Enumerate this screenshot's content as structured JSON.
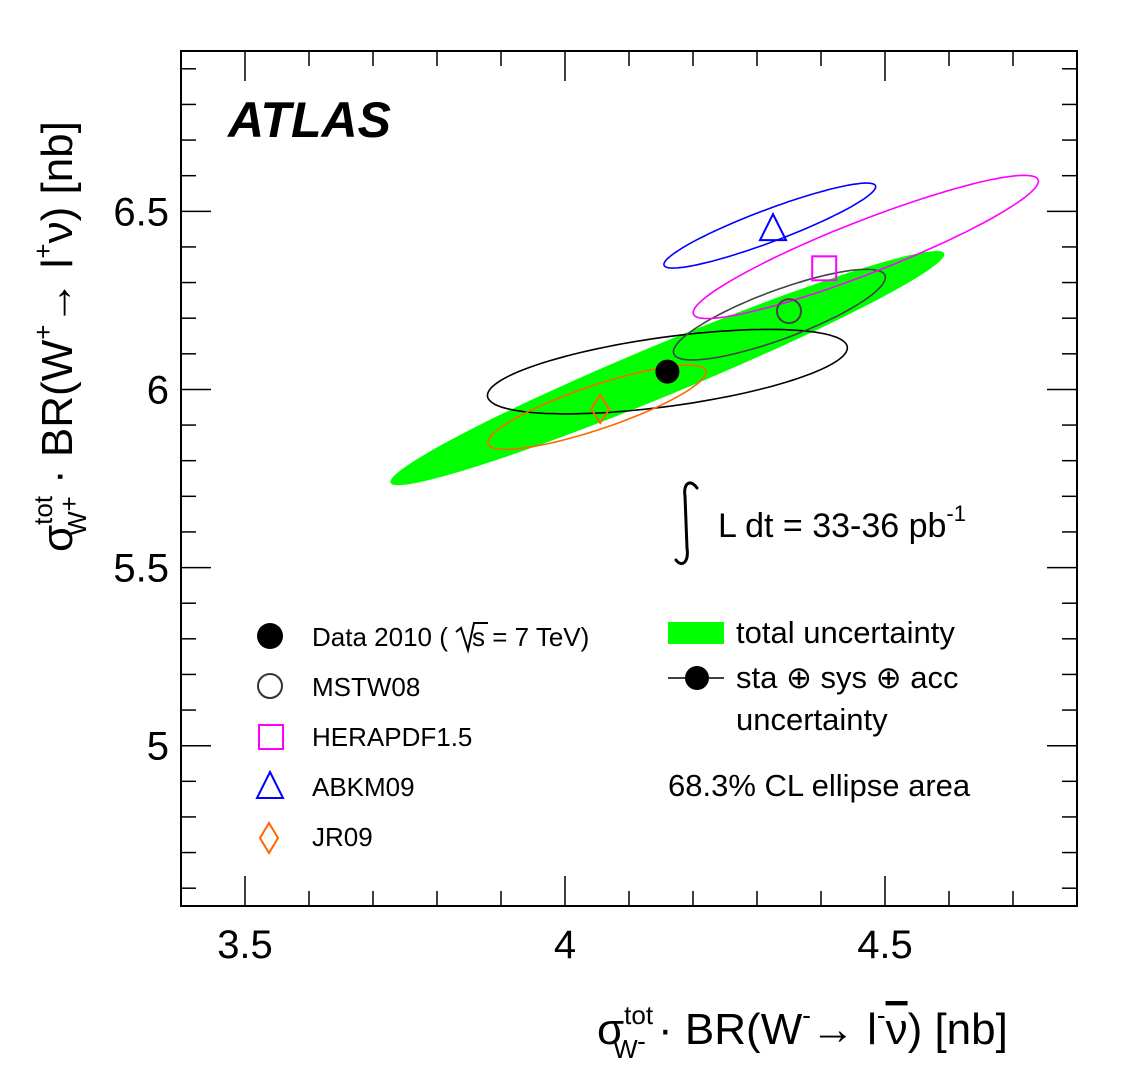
{
  "chart_data": {
    "type": "scatter",
    "experiment_label": "ATLAS",
    "luminosity_label": "L dt = 33-36 pb",
    "luminosity_exponent": "-1",
    "xlabel": {
      "sigma": "σ",
      "sup": "tot",
      "sub": "W",
      "sub_charge": "-",
      "rest": " · BR(W",
      "rest_charge": "-",
      "arrow": "→ l",
      "lepton_charge": "-",
      "neutrino": "ν",
      "unit": ") [nb]"
    },
    "ylabel": {
      "sigma": "σ",
      "sup": "tot",
      "sub": "W",
      "sub_charge": "+",
      "rest": " · BR(W",
      "rest_charge": "+",
      "arrow": "→ l",
      "lepton_charge": "+",
      "neutrino": "ν",
      "unit": ") [nb]"
    },
    "xlim": [
      3.4,
      4.8
    ],
    "ylim": [
      4.55,
      6.95
    ],
    "x_ticks": [
      {
        "value": 3.5,
        "label": "3.5"
      },
      {
        "value": 4.0,
        "label": "4"
      },
      {
        "value": 4.5,
        "label": "4.5"
      }
    ],
    "y_ticks": [
      {
        "value": 5.0,
        "label": "5"
      },
      {
        "value": 5.5,
        "label": "5.5"
      },
      {
        "value": 6.0,
        "label": "6"
      },
      {
        "value": 6.5,
        "label": "6.5"
      }
    ],
    "x_minor_step": 0.1,
    "y_minor_step": 0.1,
    "total_uncertainty_ellipse": {
      "cx": 4.16,
      "cy": 6.06,
      "major": 0.54,
      "minor": 0.062,
      "angle_deg": 37,
      "color": "#00ff00"
    },
    "series": [
      {
        "name": "Data 2010",
        "marker": "filled-circle",
        "color": "#000000",
        "x": 4.16,
        "y": 6.05,
        "ellipse": {
          "cx": 4.16,
          "cy": 6.05,
          "major": 0.29,
          "minor": 0.095,
          "angle_deg": 15
        }
      },
      {
        "name": "MSTW08",
        "marker": "open-circle",
        "color": "#444444",
        "x": 4.35,
        "y": 6.22,
        "ellipse": {
          "cx": 4.335,
          "cy": 6.21,
          "major": 0.2,
          "minor": 0.06,
          "angle_deg": 36
        }
      },
      {
        "name": "HERAPDF1.5",
        "marker": "open-square",
        "color": "#ff00ff",
        "x": 4.405,
        "y": 6.34,
        "ellipse": {
          "cx": 4.47,
          "cy": 6.4,
          "major": 0.33,
          "minor": 0.065,
          "angle_deg": 36
        }
      },
      {
        "name": "ABKM09",
        "marker": "open-triangle",
        "color": "#0000ff",
        "x": 4.325,
        "y": 6.45,
        "ellipse": {
          "cx": 4.32,
          "cy": 6.46,
          "major": 0.2,
          "minor": 0.04,
          "angle_deg": 35
        }
      },
      {
        "name": "JR09",
        "marker": "open-diamond",
        "color": "#ff6600",
        "x": 4.055,
        "y": 5.945,
        "ellipse": {
          "cx": 4.05,
          "cy": 5.95,
          "major": 0.2,
          "minor": 0.055,
          "angle_deg": 33
        }
      }
    ],
    "legend_left": [
      {
        "label": "Data 2010 (",
        "sqrt_label": "s = 7 TeV)",
        "marker": "filled-circle",
        "color": "#000000"
      },
      {
        "label": "MSTW08",
        "marker": "open-circle",
        "color": "#333333"
      },
      {
        "label": "HERAPDF1.5",
        "marker": "open-square",
        "color": "#ff00ff"
      },
      {
        "label": "ABKM09",
        "marker": "open-triangle",
        "color": "#0000ff"
      },
      {
        "label": "JR09",
        "marker": "open-diamond",
        "color": "#ff6600"
      }
    ],
    "legend_right": {
      "total": "total uncertainty",
      "stat_line1": "sta ⊕ sys ⊕ acc",
      "stat_line2": "uncertainty",
      "note": "68.3% CL ellipse area"
    }
  }
}
